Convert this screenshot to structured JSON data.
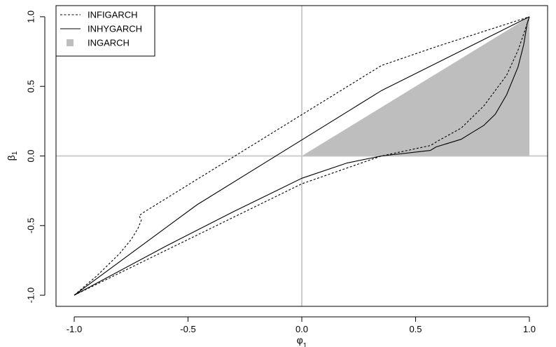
{
  "chart_data": {
    "type": "line",
    "title": "",
    "xlabel": "φ",
    "xlabel_sub": "1",
    "ylabel": "β",
    "ylabel_sub": "1",
    "xlim": [
      -1.08,
      1.08
    ],
    "ylim": [
      -1.08,
      1.08
    ],
    "xticks": [
      -1.0,
      -0.5,
      0.0,
      0.5,
      1.0
    ],
    "xtick_labels": [
      "-1.0",
      "-0.5",
      "0.0",
      "0.5",
      "1.0"
    ],
    "yticks": [
      -1.0,
      -0.5,
      0.0,
      0.5,
      1.0
    ],
    "ytick_labels": [
      "-1.0",
      "-0.5",
      "0.0",
      "0.5",
      "1.0"
    ],
    "reference_lines": {
      "x": 0,
      "y": 0,
      "color": "#cccccc"
    },
    "grid": false,
    "legend_position": "top-left",
    "series": [
      {
        "name": "INFIGARCH",
        "style": "dotted",
        "color": "#000000",
        "upper": [
          [
            -1.0,
            -1.0
          ],
          [
            -0.9,
            -0.86
          ],
          [
            -0.8,
            -0.7
          ],
          [
            -0.75,
            -0.6
          ],
          [
            -0.72,
            -0.52
          ],
          [
            -0.705,
            -0.46
          ],
          [
            -0.715,
            -0.43
          ],
          [
            -0.7,
            -0.41
          ],
          [
            0.35,
            0.65
          ],
          [
            0.6,
            0.79
          ],
          [
            1.0,
            1.0
          ]
        ],
        "lower": [
          [
            -1.0,
            -1.0
          ],
          [
            -0.5,
            -0.6
          ],
          [
            0.0,
            -0.2
          ],
          [
            0.35,
            0.0
          ],
          [
            0.565,
            0.075
          ],
          [
            0.6,
            0.11
          ],
          [
            0.7,
            0.2
          ],
          [
            0.8,
            0.36
          ],
          [
            0.9,
            0.58
          ],
          [
            0.95,
            0.76
          ],
          [
            0.98,
            0.9
          ],
          [
            1.0,
            1.0
          ]
        ]
      },
      {
        "name": "INHYGARCH",
        "style": "solid",
        "color": "#000000",
        "upper": [
          [
            -1.0,
            -1.0
          ],
          [
            -0.46,
            -0.35
          ],
          [
            0.35,
            0.47
          ],
          [
            1.0,
            1.0
          ]
        ],
        "lower": [
          [
            -1.0,
            -1.0
          ],
          [
            -0.6,
            -0.65
          ],
          [
            -0.3,
            -0.4
          ],
          [
            0.0,
            -0.16
          ],
          [
            0.2,
            -0.05
          ],
          [
            0.35,
            0.0
          ],
          [
            0.565,
            0.04
          ],
          [
            0.59,
            0.065
          ],
          [
            0.68,
            0.11
          ],
          [
            0.7,
            0.12
          ],
          [
            0.75,
            0.17
          ],
          [
            0.8,
            0.22
          ],
          [
            0.85,
            0.3
          ],
          [
            0.9,
            0.44
          ],
          [
            0.95,
            0.64
          ],
          [
            0.975,
            0.8
          ],
          [
            0.99,
            0.95
          ],
          [
            1.0,
            1.0
          ]
        ]
      },
      {
        "name": "INGARCH",
        "style": "filled",
        "color": "#bebebe",
        "region": [
          [
            0.0,
            0.0
          ],
          [
            1.0,
            1.0
          ],
          [
            1.0,
            0.0
          ]
        ]
      }
    ]
  }
}
